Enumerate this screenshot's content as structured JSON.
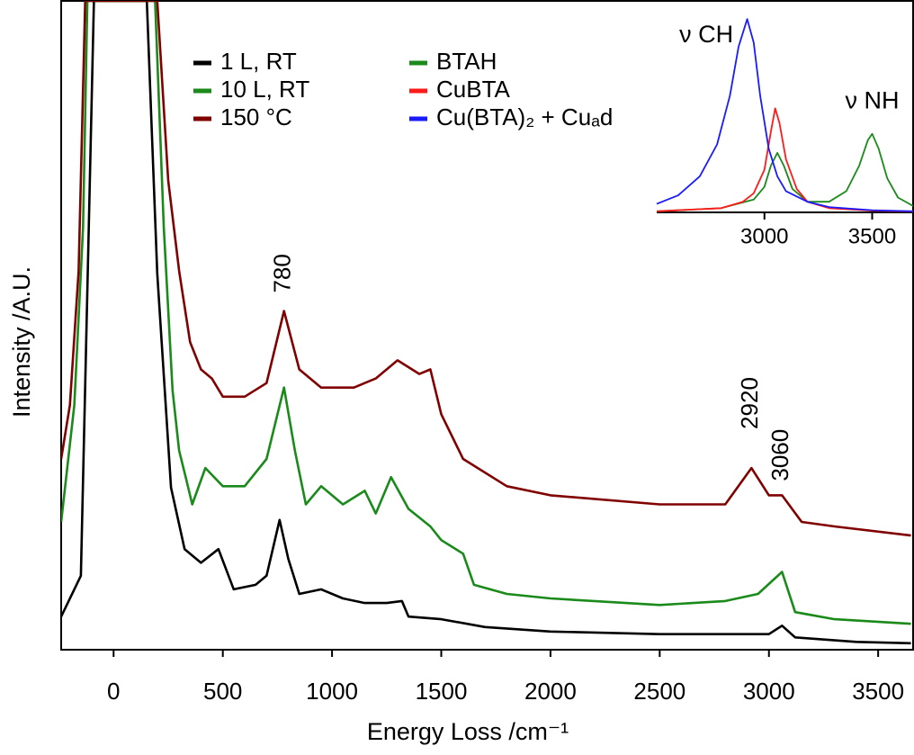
{
  "chart_data": [
    {
      "type": "line",
      "xlabel": "Energy Loss /cm⁻¹",
      "ylabel": "Intensity /A.U.",
      "xlim": [
        -240,
        3660
      ],
      "ylim": [
        0,
        100
      ],
      "xticks": [
        0,
        500,
        1000,
        1500,
        2000,
        2500,
        3000,
        3500
      ],
      "series": [
        {
          "name": "1 L, RT",
          "color": "#000000",
          "x": [
            -240,
            -150,
            -90,
            152,
            200,
            263,
            325,
            400,
            480,
            550,
            650,
            700,
            760,
            800,
            850,
            950,
            1050,
            1150,
            1250,
            1320,
            1350,
            1500,
            1700,
            2000,
            2500,
            3000,
            3060,
            3120,
            3400,
            3650
          ],
          "values": [
            5.1,
            11.4,
            100,
            100,
            58,
            25,
            15.5,
            13.4,
            15.5,
            9.3,
            10,
            11.4,
            20,
            14,
            8.6,
            9.3,
            7.9,
            7.2,
            7.2,
            7.5,
            5.1,
            4.7,
            3.5,
            2.8,
            2.4,
            2.4,
            3.7,
            1.9,
            1.2,
            1
          ]
        },
        {
          "name": "10 L, RT",
          "color": "#1a8a1a",
          "x": [
            -240,
            -180,
            -140,
            -120,
            190,
            230,
            270,
            300,
            330,
            360,
            420,
            500,
            600,
            700,
            780,
            830,
            880,
            950,
            1050,
            1150,
            1200,
            1270,
            1350,
            1450,
            1500,
            1600,
            1650,
            1800,
            2000,
            2500,
            2800,
            2950,
            3060,
            3120,
            3300,
            3650
          ],
          "values": [
            19.7,
            37.7,
            65,
            100,
            100,
            65,
            40,
            30.7,
            26.6,
            22.4,
            28,
            25.2,
            25.2,
            29.4,
            40.4,
            30.7,
            22.4,
            25.2,
            22.4,
            24.5,
            21,
            26.6,
            21.7,
            19,
            16.9,
            14.8,
            10,
            8.6,
            7.9,
            6.9,
            7.5,
            8.6,
            12,
            5.8,
            4.7,
            4
          ]
        },
        {
          "name": "150 °C",
          "color": "#800000",
          "x": [
            -240,
            -200,
            -160,
            -130,
            200,
            250,
            300,
            350,
            400,
            450,
            500,
            600,
            700,
            780,
            850,
            950,
            1100,
            1200,
            1300,
            1400,
            1450,
            1500,
            1600,
            1800,
            2000,
            2500,
            2800,
            2920,
            3000,
            3060,
            3150,
            3300,
            3650
          ],
          "values": [
            29.4,
            37.7,
            58.4,
            100,
            100,
            72.3,
            58.4,
            47.4,
            43.2,
            41.8,
            39,
            39,
            41.1,
            52.2,
            43.2,
            40.4,
            40.4,
            41.8,
            44.6,
            42.5,
            43.2,
            36.3,
            29.4,
            25.2,
            23.8,
            22.4,
            22.4,
            28,
            23.8,
            23.8,
            19.7,
            19,
            17.6
          ]
        }
      ],
      "annotations": [
        {
          "text": "780",
          "x": 780,
          "y": 58
        },
        {
          "text": "2920",
          "x": 2920,
          "y": 38
        },
        {
          "text": "3060",
          "x": 3060,
          "y": 30
        }
      ]
    },
    {
      "type": "line",
      "xlim": [
        2500,
        3690
      ],
      "ylim": [
        0,
        1
      ],
      "xticks": [
        3000,
        3500
      ],
      "series": [
        {
          "name": "BTAH",
          "color": "#1a8a1a",
          "x": [
            2500,
            2800,
            2950,
            3000,
            3030,
            3060,
            3090,
            3130,
            3200,
            3300,
            3380,
            3440,
            3480,
            3500,
            3530,
            3570,
            3620,
            3690
          ],
          "values": [
            0.005,
            0.02,
            0.06,
            0.12,
            0.22,
            0.28,
            0.22,
            0.11,
            0.05,
            0.05,
            0.1,
            0.22,
            0.34,
            0.37,
            0.3,
            0.16,
            0.07,
            0.03
          ]
        },
        {
          "name": "CuBTA",
          "color": "#ff1a1a",
          "x": [
            2500,
            2800,
            2900,
            2950,
            3000,
            3030,
            3050,
            3070,
            3100,
            3150,
            3200,
            3300,
            3500,
            3690
          ],
          "values": [
            0.005,
            0.02,
            0.05,
            0.09,
            0.2,
            0.38,
            0.49,
            0.42,
            0.25,
            0.11,
            0.05,
            0.02,
            0.008,
            0.004
          ]
        },
        {
          "name": "Cu(BTA)₂ + Cuₐd",
          "color": "#1a1aff",
          "x": [
            2500,
            2600,
            2700,
            2780,
            2840,
            2880,
            2920,
            2950,
            2980,
            3020,
            3060,
            3100,
            3200,
            3300,
            3500,
            3690
          ],
          "values": [
            0.04,
            0.08,
            0.17,
            0.32,
            0.55,
            0.78,
            0.91,
            0.8,
            0.55,
            0.3,
            0.17,
            0.1,
            0.05,
            0.025,
            0.01,
            0.005
          ]
        }
      ],
      "annotations": [
        {
          "text": "ν CH",
          "x": 2730,
          "y": 0.83
        },
        {
          "text": "ν NH",
          "x": 3500,
          "y": 0.52
        }
      ]
    }
  ]
}
